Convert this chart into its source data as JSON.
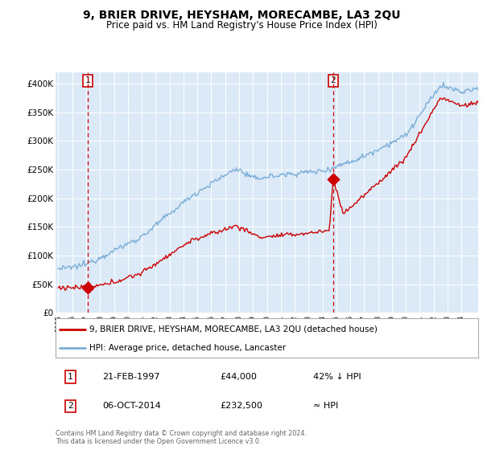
{
  "title": "9, BRIER DRIVE, HEYSHAM, MORECAMBE, LA3 2QU",
  "subtitle": "Price paid vs. HM Land Registry's House Price Index (HPI)",
  "title_fontsize": 10,
  "subtitle_fontsize": 8.5,
  "bg_color": "#dce9f7",
  "line_color_red": "#cc0000",
  "line_color_blue": "#7aaed6",
  "yticks": [
    0,
    50000,
    100000,
    150000,
    200000,
    250000,
    300000,
    350000,
    400000
  ],
  "ytick_labels": [
    "£0",
    "£50K",
    "£100K",
    "£150K",
    "£200K",
    "£250K",
    "£300K",
    "£350K",
    "£400K"
  ],
  "xlim_min": 1994.8,
  "xlim_max": 2025.2,
  "ylim_min": 0,
  "ylim_max": 420000,
  "sale1_x": 1997.12,
  "sale1_y": 44000,
  "sale2_x": 2014.76,
  "sale2_y": 232500,
  "legend_label1": "9, BRIER DRIVE, HEYSHAM, MORECAMBE, LA3 2QU (detached house)",
  "legend_label2": "HPI: Average price, detached house, Lancaster",
  "table_row1_num": "1",
  "table_row1_date": "21-FEB-1997",
  "table_row1_price": "£44,000",
  "table_row1_hpi": "42% ↓ HPI",
  "table_row2_num": "2",
  "table_row2_date": "06-OCT-2014",
  "table_row2_price": "£232,500",
  "table_row2_hpi": "≈ HPI",
  "footer": "Contains HM Land Registry data © Crown copyright and database right 2024.\nThis data is licensed under the Open Government Licence v3.0.",
  "dashed_line_color": "#cc0000",
  "grid_color": "#ffffff"
}
